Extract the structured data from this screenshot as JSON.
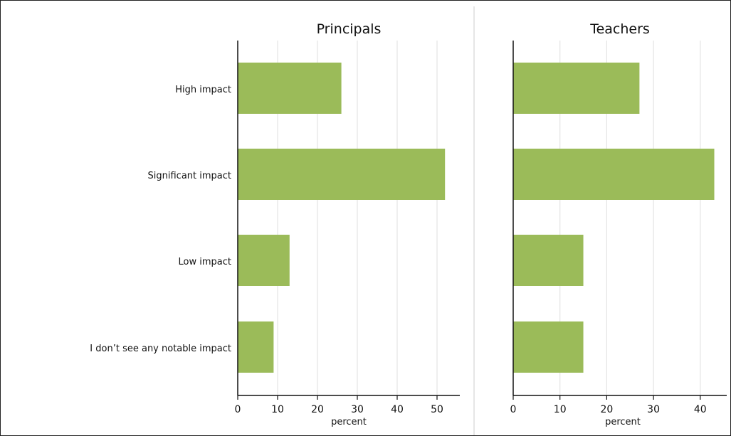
{
  "chart_data": {
    "type": "bar",
    "orientation": "horizontal",
    "bar_color": "#9bbb59",
    "grid": true,
    "categories": [
      "High impact",
      "Significant impact",
      "Low impact",
      "I don’t see any notable impact"
    ],
    "panels": [
      {
        "title": "Principals",
        "xlabel": "percent",
        "xlim": [
          0,
          55
        ],
        "xticks": [
          0,
          10,
          20,
          30,
          40,
          50
        ],
        "values": [
          26,
          52,
          13,
          9
        ]
      },
      {
        "title": "Teachers",
        "xlabel": "percent",
        "xlim": [
          0,
          45
        ],
        "xticks": [
          0,
          10,
          20,
          30,
          40
        ],
        "values": [
          27,
          43,
          15,
          15
        ]
      }
    ]
  }
}
